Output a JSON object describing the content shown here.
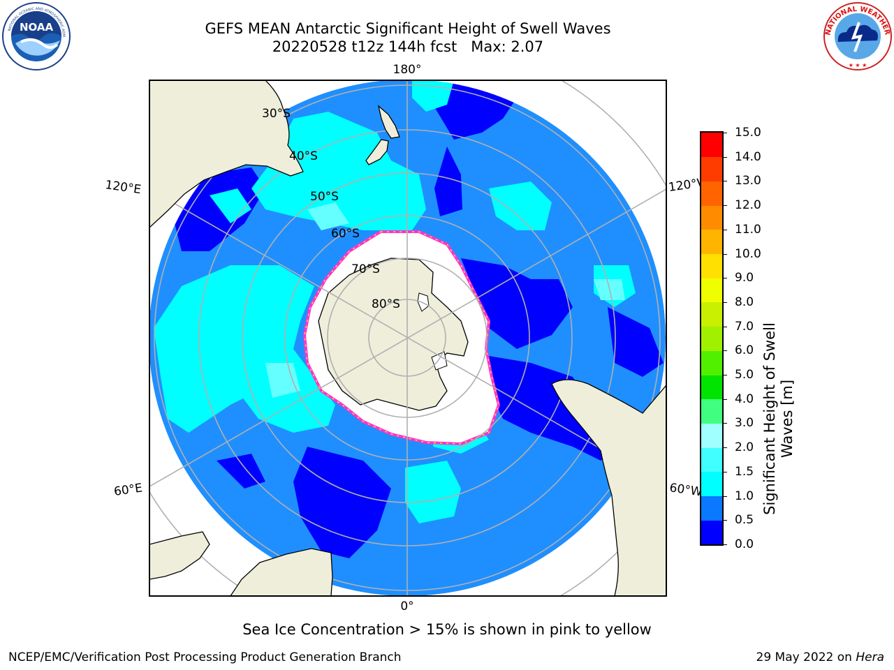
{
  "header": {
    "title_line1": "GEFS MEAN Antarctic Significant Height of Swell Waves",
    "title_line2": "20220528 t12z 144h fcst   Max: 2.07"
  },
  "map": {
    "lat_labels": [
      "30°S",
      "40°S",
      "50°S",
      "60°S",
      "70°S",
      "80°S"
    ],
    "lon_labels": {
      "top": "180°",
      "bottom": "0°",
      "upper_left": "120°E",
      "upper_right": "120°W",
      "lower_left": "60°E",
      "lower_right": "60°W"
    },
    "colors": {
      "land": "#eeeedb",
      "ice": "#ffffff",
      "ice_edge": "#ff33cc",
      "ocean_base": "#1f8fff",
      "ocean_dark": "#0000ff",
      "ocean_light": "#00ffff"
    }
  },
  "colorbar": {
    "title_line1": "Significant Height of Swell",
    "title_line2": "Waves [m]",
    "ticks": [
      "0.0",
      "0.5",
      "1.0",
      "1.5",
      "2.0",
      "3.0",
      "4.0",
      "5.0",
      "6.0",
      "7.0",
      "8.0",
      "9.0",
      "10.0",
      "11.0",
      "12.0",
      "13.0",
      "14.0",
      "15.0"
    ],
    "colors": [
      "#0000ff",
      "#0a78ff",
      "#00ffff",
      "#40ffff",
      "#a0ffff",
      "#40ff80",
      "#00e400",
      "#50f000",
      "#a0f000",
      "#c8f000",
      "#f0ff00",
      "#ffe000",
      "#ffb400",
      "#ff8c00",
      "#ff6400",
      "#ff3c00",
      "#ff0000"
    ]
  },
  "footer": {
    "note": "Sea Ice Concentration > 15% is shown in pink to yellow",
    "credit": "NCEP/EMC/Verification Post Processing Product Generation Branch",
    "date": "29 May 2022 on",
    "machine": "Hera"
  }
}
